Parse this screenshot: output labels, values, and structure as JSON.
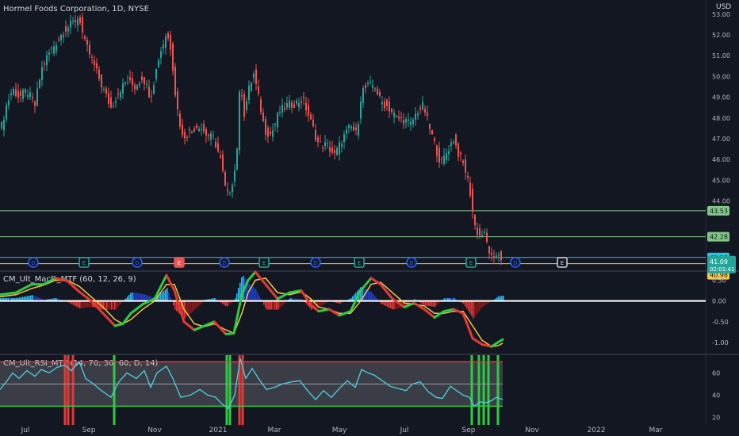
{
  "header": {
    "symbol_title": "Hormel Foods Corporation, 1D, NYSE",
    "currency": "USD",
    "macd_title": "CM_Ult_MacD_MTF (60, 12, 26, 9)",
    "rsi_title": "CM_Ult_RSI_MTF (14, 70, 30, 60, D, 14)"
  },
  "colors": {
    "background": "#131722",
    "up": "#26a69a",
    "down": "#ef5350",
    "hline_green": "#81c784",
    "hline_teal": "#26c6da",
    "hline_yellow": "#f7c948",
    "macd_hist_pos": "#29b6f6",
    "macd_hist_pos_strong": "#1e3fc8",
    "macd_hist_neg": "#e53935",
    "macd_hist_neg_weak": "#8b1a1a",
    "macd_line_up": "#2ecc40",
    "macd_line_down": "#e53935",
    "signal_line": "#f5c542",
    "rsi_line": "#4dd0e1",
    "rsi_over": "#e53935",
    "rsi_under": "#2ecc40"
  },
  "chart_data": [
    {
      "type": "candlestick",
      "title": "Hormel Foods Corporation, 1D, NYSE",
      "x_ticks": [
        "Jul",
        "Sep",
        "Nov",
        "2021",
        "Mar",
        "May",
        "Jul",
        "Sep",
        "Nov",
        "2022",
        "Mar"
      ],
      "y_ticks": [
        44.0,
        45.0,
        46.0,
        47.0,
        48.0,
        49.0,
        50.0,
        51.0,
        52.0,
        53.0
      ],
      "ylim": [
        40.7,
        53.3
      ],
      "close_path": [
        [
          0,
          47.3
        ],
        [
          8,
          48.6
        ],
        [
          16,
          49.4
        ],
        [
          24,
          49.0
        ],
        [
          34,
          49.3
        ],
        [
          44,
          48.6
        ],
        [
          52,
          50.3
        ],
        [
          60,
          51.0
        ],
        [
          70,
          51.6
        ],
        [
          80,
          52.2
        ],
        [
          90,
          52.5
        ],
        [
          100,
          52.9
        ],
        [
          106,
          51.7
        ],
        [
          114,
          51.0
        ],
        [
          122,
          50.2
        ],
        [
          130,
          49.4
        ],
        [
          140,
          48.5
        ],
        [
          150,
          49.3
        ],
        [
          160,
          49.8
        ],
        [
          170,
          49.5
        ],
        [
          180,
          50.0
        ],
        [
          190,
          49.0
        ],
        [
          200,
          50.9
        ],
        [
          210,
          52.1
        ],
        [
          216,
          51.3
        ],
        [
          222,
          48.8
        ],
        [
          230,
          47.1
        ],
        [
          240,
          47.3
        ],
        [
          250,
          47.7
        ],
        [
          260,
          47.2
        ],
        [
          270,
          47.0
        ],
        [
          278,
          46.0
        ],
        [
          286,
          44.2
        ],
        [
          292,
          44.8
        ],
        [
          298,
          45.8
        ],
        [
          303,
          49.9
        ],
        [
          308,
          48.2
        ],
        [
          314,
          49.4
        ],
        [
          320,
          50.1
        ],
        [
          326,
          49.0
        ],
        [
          334,
          47.4
        ],
        [
          342,
          47.2
        ],
        [
          352,
          48.3
        ],
        [
          362,
          48.6
        ],
        [
          372,
          48.7
        ],
        [
          382,
          48.9
        ],
        [
          392,
          47.8
        ],
        [
          402,
          46.7
        ],
        [
          412,
          46.7
        ],
        [
          422,
          46.2
        ],
        [
          432,
          47.0
        ],
        [
          442,
          47.6
        ],
        [
          450,
          47.2
        ],
        [
          456,
          49.3
        ],
        [
          464,
          49.5
        ],
        [
          472,
          49.6
        ],
        [
          480,
          48.8
        ],
        [
          490,
          48.5
        ],
        [
          500,
          48.0
        ],
        [
          510,
          47.9
        ],
        [
          518,
          47.7
        ],
        [
          526,
          48.3
        ],
        [
          534,
          48.6
        ],
        [
          542,
          47.5
        ],
        [
          550,
          46.5
        ],
        [
          556,
          45.8
        ],
        [
          564,
          46.4
        ],
        [
          572,
          47.0
        ],
        [
          578,
          46.3
        ],
        [
          586,
          45.6
        ],
        [
          592,
          44.7
        ],
        [
          598,
          42.9
        ],
        [
          604,
          42.3
        ],
        [
          610,
          42.5
        ],
        [
          616,
          41.7
        ],
        [
          622,
          41.0
        ],
        [
          628,
          41.6
        ],
        [
          634,
          41.09
        ]
      ],
      "horizontal_levels": [
        {
          "price": 43.53,
          "label": "43.53",
          "color": "hline_green"
        },
        {
          "price": 42.28,
          "label": "42.28",
          "color": "hline_green"
        },
        {
          "price": 41.28,
          "label": "41.28",
          "color": "hline_teal"
        },
        {
          "price": 40.98,
          "label": "40.98",
          "color": "hline_yellow"
        }
      ],
      "last_price": {
        "value": 41.09,
        "label": "41.09",
        "countdown": "02:01:41"
      },
      "events": [
        {
          "x": 42,
          "kind": "D"
        },
        {
          "x": 106,
          "kind": "E"
        },
        {
          "x": 173,
          "kind": "D"
        },
        {
          "x": 226,
          "kind": "E"
        },
        {
          "x": 283,
          "kind": "D"
        },
        {
          "x": 333,
          "kind": "E"
        },
        {
          "x": 398,
          "kind": "D"
        },
        {
          "x": 453,
          "kind": "E"
        },
        {
          "x": 519,
          "kind": "D"
        },
        {
          "x": 594,
          "kind": "E"
        },
        {
          "x": 650,
          "kind": "D"
        },
        {
          "x": 709,
          "kind": "E"
        }
      ]
    },
    {
      "type": "macd",
      "title": "CM_Ult_MacD_MTF (60, 12, 26, 9)",
      "y_ticks": [
        0.5,
        0.0,
        -0.5,
        -1.0
      ],
      "ylim": [
        -1.25,
        0.7
      ],
      "macd_path": [
        [
          0,
          0.15
        ],
        [
          20,
          0.2
        ],
        [
          40,
          0.4
        ],
        [
          55,
          0.4
        ],
        [
          70,
          0.55
        ],
        [
          85,
          0.48
        ],
        [
          100,
          0.22
        ],
        [
          115,
          0.0
        ],
        [
          130,
          -0.3
        ],
        [
          145,
          -0.6
        ],
        [
          155,
          -0.55
        ],
        [
          165,
          -0.3
        ],
        [
          180,
          -0.08
        ],
        [
          195,
          0.05
        ],
        [
          210,
          0.62
        ],
        [
          220,
          0.25
        ],
        [
          232,
          -0.5
        ],
        [
          245,
          -0.7
        ],
        [
          258,
          -0.6
        ],
        [
          270,
          -0.5
        ],
        [
          285,
          -0.8
        ],
        [
          295,
          -0.78
        ],
        [
          305,
          0.15
        ],
        [
          313,
          0.5
        ],
        [
          322,
          0.7
        ],
        [
          335,
          0.4
        ],
        [
          350,
          0.05
        ],
        [
          365,
          0.2
        ],
        [
          380,
          0.25
        ],
        [
          392,
          -0.1
        ],
        [
          402,
          -0.25
        ],
        [
          415,
          -0.2
        ],
        [
          428,
          -0.35
        ],
        [
          442,
          -0.25
        ],
        [
          455,
          0.25
        ],
        [
          468,
          0.55
        ],
        [
          480,
          0.4
        ],
        [
          495,
          0.05
        ],
        [
          510,
          -0.15
        ],
        [
          522,
          -0.05
        ],
        [
          535,
          -0.2
        ],
        [
          548,
          -0.4
        ],
        [
          560,
          -0.25
        ],
        [
          572,
          -0.2
        ],
        [
          584,
          -0.3
        ],
        [
          596,
          -0.9
        ],
        [
          608,
          -1.05
        ],
        [
          620,
          -1.1
        ],
        [
          628,
          -1.0
        ],
        [
          634,
          -0.93
        ]
      ],
      "signal_path": [
        [
          0,
          0.1
        ],
        [
          20,
          0.15
        ],
        [
          40,
          0.3
        ],
        [
          55,
          0.38
        ],
        [
          70,
          0.5
        ],
        [
          85,
          0.5
        ],
        [
          100,
          0.35
        ],
        [
          115,
          0.1
        ],
        [
          130,
          -0.15
        ],
        [
          145,
          -0.45
        ],
        [
          155,
          -0.55
        ],
        [
          165,
          -0.45
        ],
        [
          180,
          -0.2
        ],
        [
          195,
          0.0
        ],
        [
          210,
          0.4
        ],
        [
          220,
          0.4
        ],
        [
          232,
          -0.2
        ],
        [
          245,
          -0.55
        ],
        [
          258,
          -0.62
        ],
        [
          270,
          -0.55
        ],
        [
          285,
          -0.7
        ],
        [
          295,
          -0.78
        ],
        [
          305,
          -0.3
        ],
        [
          313,
          0.2
        ],
        [
          322,
          0.5
        ],
        [
          335,
          0.55
        ],
        [
          350,
          0.2
        ],
        [
          365,
          0.15
        ],
        [
          380,
          0.22
        ],
        [
          392,
          0.05
        ],
        [
          402,
          -0.15
        ],
        [
          415,
          -0.2
        ],
        [
          428,
          -0.3
        ],
        [
          442,
          -0.3
        ],
        [
          455,
          0.0
        ],
        [
          468,
          0.4
        ],
        [
          480,
          0.45
        ],
        [
          495,
          0.2
        ],
        [
          510,
          -0.05
        ],
        [
          522,
          -0.08
        ],
        [
          535,
          -0.12
        ],
        [
          548,
          -0.3
        ],
        [
          560,
          -0.3
        ],
        [
          572,
          -0.25
        ],
        [
          584,
          -0.25
        ],
        [
          596,
          -0.6
        ],
        [
          608,
          -0.95
        ],
        [
          620,
          -1.1
        ],
        [
          628,
          -1.08
        ],
        [
          634,
          -1.02
        ]
      ],
      "zero_line": 0.0
    },
    {
      "type": "rsi",
      "title": "CM_Ult_RSI_MTF (14, 70, 30, 60, D, 14)",
      "y_ticks": [
        60,
        40,
        20
      ],
      "ylim": [
        16,
        76
      ],
      "upper": 70,
      "lower": 30,
      "mid": 50,
      "rsi_path": [
        [
          0,
          45
        ],
        [
          8,
          52
        ],
        [
          16,
          60
        ],
        [
          24,
          55
        ],
        [
          34,
          62
        ],
        [
          44,
          57
        ],
        [
          52,
          63
        ],
        [
          62,
          60
        ],
        [
          72,
          65
        ],
        [
          82,
          67
        ],
        [
          90,
          62
        ],
        [
          100,
          70
        ],
        [
          108,
          55
        ],
        [
          118,
          50
        ],
        [
          128,
          44
        ],
        [
          140,
          38
        ],
        [
          150,
          52
        ],
        [
          160,
          60
        ],
        [
          172,
          55
        ],
        [
          182,
          62
        ],
        [
          190,
          47
        ],
        [
          198,
          60
        ],
        [
          210,
          66
        ],
        [
          218,
          55
        ],
        [
          228,
          38
        ],
        [
          240,
          40
        ],
        [
          252,
          45
        ],
        [
          262,
          40
        ],
        [
          272,
          38
        ],
        [
          280,
          32
        ],
        [
          288,
          28
        ],
        [
          296,
          40
        ],
        [
          303,
          73
        ],
        [
          310,
          55
        ],
        [
          318,
          64
        ],
        [
          326,
          55
        ],
        [
          336,
          45
        ],
        [
          346,
          47
        ],
        [
          356,
          50
        ],
        [
          368,
          52
        ],
        [
          378,
          53
        ],
        [
          388,
          44
        ],
        [
          398,
          36
        ],
        [
          408,
          44
        ],
        [
          418,
          38
        ],
        [
          428,
          46
        ],
        [
          438,
          53
        ],
        [
          448,
          47
        ],
        [
          456,
          63
        ],
        [
          464,
          60
        ],
        [
          472,
          58
        ],
        [
          482,
          53
        ],
        [
          492,
          48
        ],
        [
          502,
          46
        ],
        [
          512,
          44
        ],
        [
          520,
          50
        ],
        [
          530,
          52
        ],
        [
          540,
          43
        ],
        [
          550,
          38
        ],
        [
          558,
          37
        ],
        [
          568,
          48
        ],
        [
          576,
          44
        ],
        [
          584,
          40
        ],
        [
          592,
          38
        ],
        [
          598,
          30
        ],
        [
          606,
          34
        ],
        [
          612,
          33
        ],
        [
          620,
          35
        ],
        [
          626,
          38
        ],
        [
          634,
          36
        ]
      ],
      "signal_markers": [
        {
          "x": 82,
          "kind": "over"
        },
        {
          "x": 86,
          "kind": "over"
        },
        {
          "x": 92,
          "kind": "over"
        },
        {
          "x": 144,
          "kind": "under"
        },
        {
          "x": 286,
          "kind": "under"
        },
        {
          "x": 290,
          "kind": "under"
        },
        {
          "x": 302,
          "kind": "over"
        },
        {
          "x": 306,
          "kind": "over"
        },
        {
          "x": 595,
          "kind": "under"
        },
        {
          "x": 604,
          "kind": "under"
        },
        {
          "x": 610,
          "kind": "under"
        },
        {
          "x": 616,
          "kind": "under"
        },
        {
          "x": 628,
          "kind": "under"
        }
      ]
    }
  ]
}
